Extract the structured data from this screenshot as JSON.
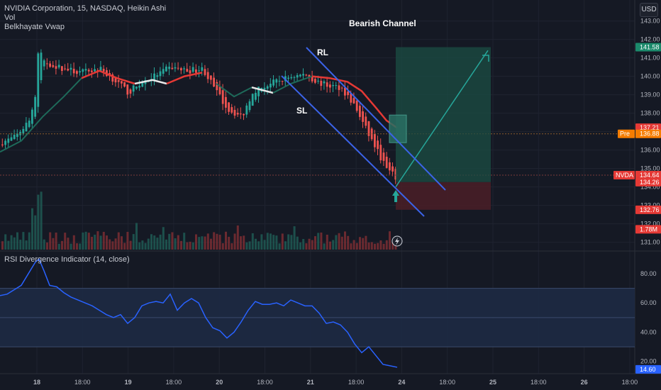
{
  "legend": {
    "symbol": "NVIDIA Corporation, 15, NASDAQ, Heikin Ashi",
    "vol": "Vol",
    "vwap": "Belkhayate Vwap"
  },
  "currency_button": "USD",
  "annotations": {
    "title": "Bearish Channel",
    "rl": "RL",
    "sl": "SL"
  },
  "colors": {
    "background": "#151924",
    "up": "#26a69a",
    "down": "#ef5350",
    "channel": "#3b63e8",
    "rsi": "#2962ff",
    "target_zone": "#1b4d43",
    "stop_zone": "#4a1e27"
  },
  "chart_data": [
    {
      "type": "candlestick",
      "symbol": "NVDA",
      "interval": "15",
      "price_axis": {
        "ylim": [
          130.6,
          143.6
        ],
        "ticks": [
          131,
          132,
          133,
          134,
          135,
          136,
          137,
          138,
          139,
          140,
          141,
          142,
          143
        ],
        "tick_labels": [
          "131.00",
          "132.00",
          "133.00",
          "134.00",
          "135.00",
          "136.00",
          "137.00",
          "138.00",
          "139.00",
          "140.00",
          "141.00",
          "142.00",
          "143.00"
        ]
      },
      "time_axis": {
        "labels": [
          "18",
          "18:00",
          "19",
          "18:00",
          "20",
          "18:00",
          "21",
          "18:00",
          "24",
          "18:00",
          "25",
          "18:00",
          "26",
          "18:00"
        ],
        "bold": [
          true,
          false,
          true,
          false,
          true,
          false,
          true,
          false,
          true,
          false,
          true,
          false,
          true,
          false
        ]
      },
      "price_labels": [
        {
          "value": "141.58",
          "price": 141.58,
          "color": "#1b8a6b"
        },
        {
          "value": "137.21",
          "price": 137.21,
          "color": "#e53935"
        },
        {
          "value": "136.88",
          "price": 136.88,
          "color": "#f57c00",
          "prefix": "Pre"
        },
        {
          "value": "134.64",
          "price": 134.64,
          "color": "#787b86"
        },
        {
          "value": "134.64",
          "price": 134.64,
          "color": "#e53935",
          "prefix": "NVDA"
        },
        {
          "value": "134.26",
          "price": 134.26,
          "color": "#e53935"
        },
        {
          "value": "132.76",
          "price": 132.76,
          "color": "#e53935"
        },
        {
          "value": "1.78M",
          "price": 131.7,
          "color": "#e53935"
        }
      ],
      "pre_market_price": 136.88,
      "last_price": 134.64,
      "trade": {
        "entry": 134.26,
        "target": 141.58,
        "stop": 132.76
      }
    },
    {
      "type": "line",
      "title": "RSI Divergence Indicator (14, close)",
      "ylim": [
        15,
        95
      ],
      "ticks": [
        20,
        40,
        60,
        80
      ],
      "tick_labels": [
        "20.00",
        "40.00",
        "60.00",
        "80.00"
      ],
      "bands": [
        30,
        50,
        70
      ],
      "last_value": "14.60",
      "last": 14.6
    }
  ]
}
